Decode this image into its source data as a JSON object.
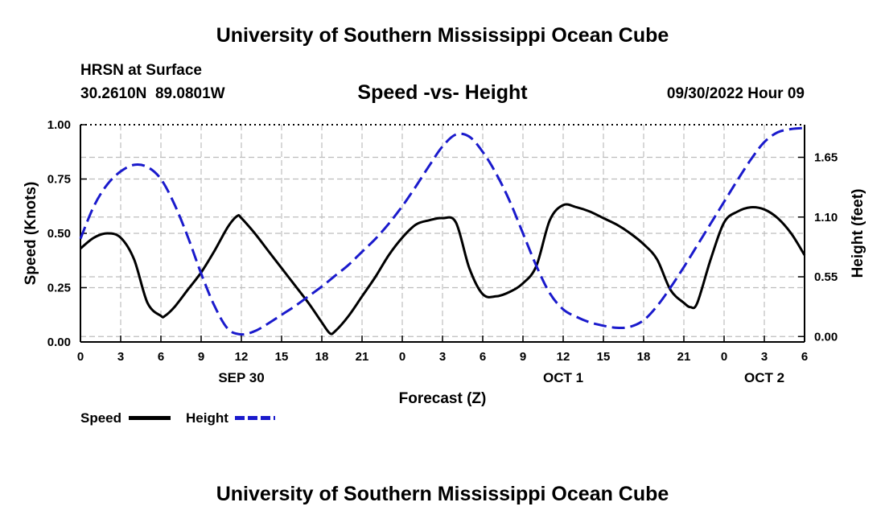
{
  "header": {
    "title": "University of Southern Mississippi Ocean Cube",
    "station": "HRSN at Surface",
    "coords": "30.2610N  89.0801W",
    "chart_subtitle": "Speed -vs- Height",
    "date": "09/30/2022 Hour 09"
  },
  "legend": {
    "speed_label": "Speed",
    "height_label": "Height"
  },
  "footer": {
    "title": "University of Southern Mississippi Ocean Cube"
  },
  "colors": {
    "speed": "#000000",
    "height": "#1a1acc",
    "grid": "#bdbdbd"
  },
  "chart_data": {
    "type": "line",
    "title": "Speed -vs- Height",
    "xlabel": "Forecast (Z)",
    "ylabel": "Speed (Knots)",
    "y2label": "Height (feet)",
    "x_unit": "hours from SEP 30 00Z",
    "xlim": [
      0,
      54
    ],
    "ylim": [
      0,
      1
    ],
    "y2lim": [
      -0.05,
      1.95
    ],
    "x_ticks": [
      {
        "x": 0,
        "label": "0"
      },
      {
        "x": 3,
        "label": "3"
      },
      {
        "x": 6,
        "label": "6"
      },
      {
        "x": 9,
        "label": "9"
      },
      {
        "x": 12,
        "label": "12"
      },
      {
        "x": 15,
        "label": "15"
      },
      {
        "x": 18,
        "label": "18"
      },
      {
        "x": 21,
        "label": "21"
      },
      {
        "x": 24,
        "label": "0"
      },
      {
        "x": 27,
        "label": "3"
      },
      {
        "x": 30,
        "label": "6"
      },
      {
        "x": 33,
        "label": "9"
      },
      {
        "x": 36,
        "label": "12"
      },
      {
        "x": 39,
        "label": "15"
      },
      {
        "x": 42,
        "label": "18"
      },
      {
        "x": 45,
        "label": "21"
      },
      {
        "x": 48,
        "label": "0"
      },
      {
        "x": 51,
        "label": "3"
      },
      {
        "x": 54,
        "label": "6"
      }
    ],
    "date_labels": [
      {
        "x": 12,
        "label": "SEP 30"
      },
      {
        "x": 36,
        "label": "OCT 1"
      },
      {
        "x": 51,
        "label": "OCT 2"
      }
    ],
    "y_ticks": [
      {
        "v": 0.0,
        "label": "0.00"
      },
      {
        "v": 0.25,
        "label": "0.25"
      },
      {
        "v": 0.5,
        "label": "0.50"
      },
      {
        "v": 0.75,
        "label": "0.75"
      },
      {
        "v": 1.0,
        "label": "1.00"
      }
    ],
    "y2_ticks": [
      {
        "v": 0.0,
        "label": "0.00"
      },
      {
        "v": 0.55,
        "label": "0.55"
      },
      {
        "v": 1.1,
        "label": "1.10"
      },
      {
        "v": 1.65,
        "label": "1.65"
      }
    ],
    "grid": true,
    "series": [
      {
        "name": "Speed",
        "axis": "left",
        "style": "solid",
        "x": [
          0,
          1,
          2,
          3,
          4,
          5,
          6,
          6.3,
          7,
          8,
          9,
          10,
          11,
          11.7,
          12,
          13,
          14,
          15,
          16,
          17,
          18,
          18.6,
          19,
          20,
          21,
          22,
          23,
          24,
          25,
          26,
          27,
          28,
          29,
          30,
          31,
          32,
          33,
          34,
          35,
          36,
          37,
          38,
          39,
          40,
          41,
          42,
          43,
          44,
          45,
          45.5,
          46,
          47,
          48,
          49,
          50,
          51,
          52,
          53,
          54
        ],
        "values": [
          0.43,
          0.48,
          0.5,
          0.48,
          0.38,
          0.18,
          0.12,
          0.12,
          0.16,
          0.24,
          0.32,
          0.42,
          0.53,
          0.58,
          0.57,
          0.5,
          0.42,
          0.34,
          0.26,
          0.18,
          0.09,
          0.04,
          0.05,
          0.12,
          0.21,
          0.3,
          0.4,
          0.48,
          0.54,
          0.56,
          0.57,
          0.55,
          0.34,
          0.22,
          0.21,
          0.23,
          0.27,
          0.35,
          0.56,
          0.63,
          0.62,
          0.6,
          0.57,
          0.54,
          0.5,
          0.45,
          0.38,
          0.24,
          0.18,
          0.16,
          0.18,
          0.38,
          0.55,
          0.6,
          0.62,
          0.61,
          0.57,
          0.5,
          0.4
        ]
      },
      {
        "name": "Height",
        "axis": "right",
        "style": "dashed",
        "x": [
          0,
          1,
          2,
          3,
          4,
          5,
          6,
          7,
          8,
          9,
          10,
          11,
          12,
          13,
          14,
          15,
          16,
          17,
          18,
          19,
          20,
          21,
          22,
          23,
          24,
          25,
          26,
          27,
          28,
          29,
          30,
          31,
          32,
          33,
          34,
          35,
          36,
          37,
          38,
          39,
          40,
          41,
          42,
          43,
          44,
          45,
          46,
          47,
          48,
          49,
          50,
          51,
          52,
          53,
          54
        ],
        "values": [
          0.9,
          1.2,
          1.4,
          1.52,
          1.58,
          1.56,
          1.45,
          1.22,
          0.92,
          0.58,
          0.28,
          0.07,
          0.02,
          0.05,
          0.12,
          0.2,
          0.28,
          0.37,
          0.46,
          0.56,
          0.66,
          0.78,
          0.9,
          1.04,
          1.2,
          1.38,
          1.57,
          1.75,
          1.86,
          1.84,
          1.7,
          1.5,
          1.25,
          0.95,
          0.65,
          0.4,
          0.25,
          0.18,
          0.13,
          0.1,
          0.08,
          0.09,
          0.15,
          0.28,
          0.45,
          0.64,
          0.84,
          1.04,
          1.24,
          1.44,
          1.63,
          1.79,
          1.88,
          1.91,
          1.92
        ]
      }
    ]
  }
}
